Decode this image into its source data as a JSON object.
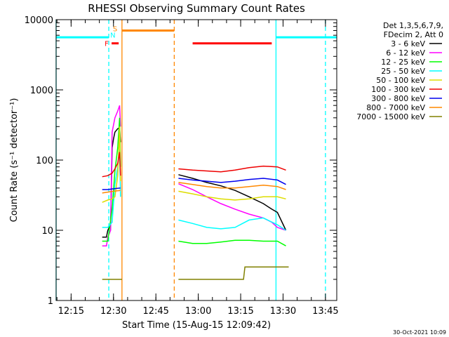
{
  "chart_data": {
    "type": "line",
    "title": "RHESSI Observing Summary Count Rates",
    "xlabel": "Start Time (15-Aug-15 12:09:42)",
    "ylabel": "Count Rate (s⁻¹ detector⁻¹)",
    "y_scale": "log",
    "xlim": [
      "12:09:42",
      "13:49:00"
    ],
    "ylim": [
      1,
      10000
    ],
    "x_ticks": [
      "12:15",
      "12:30",
      "12:45",
      "13:00",
      "13:15",
      "13:30",
      "13:45"
    ],
    "y_ticks": [
      "1",
      "10",
      "100",
      "1000",
      "10000"
    ],
    "legend_position": "right",
    "legend_header": [
      "Det 1,3,5,6,7,9,",
      "FDecim 2, Att 0"
    ],
    "timestamp": "30-Oct-2021 10:09",
    "series": [
      {
        "name": "3 - 6 keV",
        "color": "#000000",
        "x": [
          "12:26:00",
          "12:27:30",
          "12:28:00",
          "12:29:00",
          "12:29:30",
          "12:30:00",
          "12:30:30",
          "12:31:30",
          "12:32:10",
          "12:32:30"
        ],
        "values": [
          8,
          8,
          10,
          12,
          150,
          200,
          250,
          280,
          290,
          180
        ],
        "x2": [
          "12:53:00",
          "12:58:00",
          "13:03:00",
          "13:08:00",
          "13:13:00",
          "13:18:00",
          "13:23:00",
          "13:26:00",
          "13:28:00",
          "13:31:00"
        ],
        "values2": [
          62,
          55,
          48,
          43,
          37,
          30,
          24,
          20,
          18,
          10
        ]
      },
      {
        "name": "6 - 12 keV",
        "color": "#ff00ff",
        "x": [
          "12:26:00",
          "12:27:30",
          "12:28:00",
          "12:29:00",
          "12:29:30",
          "12:30:30",
          "12:31:30",
          "12:32:10",
          "12:32:30"
        ],
        "values": [
          6,
          6,
          8,
          10,
          250,
          400,
          500,
          600,
          300
        ],
        "x2": [
          "12:53:00",
          "12:58:00",
          "13:03:00",
          "13:08:00",
          "13:13:00",
          "13:18:00",
          "13:23:00",
          "13:26:00",
          "13:28:00",
          "13:31:00"
        ],
        "values2": [
          46,
          38,
          30,
          24,
          20,
          17,
          15,
          13,
          11,
          10
        ]
      },
      {
        "name": "12 - 25 keV",
        "color": "#00ff00",
        "x": [
          "12:26:00",
          "12:28:00",
          "12:29:30",
          "12:30:30",
          "12:31:30",
          "12:32:10",
          "12:32:30"
        ],
        "values": [
          7,
          7,
          20,
          70,
          150,
          400,
          80
        ],
        "x2": [
          "12:53:00",
          "12:58:00",
          "13:03:00",
          "13:08:00",
          "13:13:00",
          "13:18:00",
          "13:23:00",
          "13:28:00",
          "13:31:00"
        ],
        "values2": [
          7,
          6.5,
          6.5,
          6.8,
          7.2,
          7.2,
          7,
          7,
          6
        ]
      },
      {
        "name": "25 - 50 keV",
        "color": "#00ffff",
        "x": [
          "12:26:00",
          "12:28:00",
          "12:29:30",
          "12:30:30",
          "12:31:30",
          "12:32:10",
          "12:32:30"
        ],
        "values": [
          11,
          11,
          13,
          45,
          80,
          140,
          30
        ],
        "x2": [
          "12:53:00",
          "12:58:00",
          "13:03:00",
          "13:08:00",
          "13:13:00",
          "13:18:00",
          "13:23:00",
          "13:28:00",
          "13:31:00"
        ],
        "values2": [
          14,
          12.5,
          11,
          10.5,
          11,
          14,
          15,
          12,
          10
        ]
      },
      {
        "name": "50 - 100 keV",
        "color": "#dddd00",
        "x": [
          "12:26:00",
          "12:28:00",
          "12:29:30",
          "12:30:30",
          "12:31:30",
          "12:32:10",
          "12:32:30"
        ],
        "values": [
          25,
          27,
          28,
          30,
          60,
          300,
          50
        ],
        "x2": [
          "12:53:00",
          "12:58:00",
          "13:03:00",
          "13:08:00",
          "13:13:00",
          "13:18:00",
          "13:23:00",
          "13:28:00",
          "13:31:00"
        ],
        "values2": [
          36,
          33,
          30,
          28,
          27,
          28,
          30,
          30,
          28
        ]
      },
      {
        "name": "100 - 300 keV",
        "color": "#ee0000",
        "x": [
          "12:26:00",
          "12:28:00",
          "12:29:30",
          "12:30:30",
          "12:31:30",
          "12:32:10",
          "12:32:30"
        ],
        "values": [
          58,
          60,
          65,
          75,
          90,
          130,
          60
        ],
        "x2": [
          "12:53:00",
          "12:58:00",
          "13:03:00",
          "13:08:00",
          "13:13:00",
          "13:18:00",
          "13:23:00",
          "13:28:00",
          "13:31:00"
        ],
        "values2": [
          75,
          72,
          70,
          68,
          72,
          78,
          82,
          80,
          72
        ]
      },
      {
        "name": "300 - 800 keV",
        "color": "#0000ee",
        "x": [
          "12:26:00",
          "12:28:00",
          "12:30:00",
          "12:32:30"
        ],
        "values": [
          38,
          38,
          39,
          40
        ],
        "x2": [
          "12:53:00",
          "12:58:00",
          "13:03:00",
          "13:08:00",
          "13:13:00",
          "13:18:00",
          "13:23:00",
          "13:28:00",
          "13:31:00"
        ],
        "values2": [
          55,
          52,
          50,
          48,
          50,
          53,
          55,
          52,
          45
        ]
      },
      {
        "name": "800 - 7000 keV",
        "color": "#ff8800",
        "x": [
          "12:26:00",
          "12:28:00",
          "12:30:00",
          "12:32:30"
        ],
        "values": [
          34,
          35,
          36,
          37
        ],
        "x2": [
          "12:53:00",
          "12:58:00",
          "13:03:00",
          "13:08:00",
          "13:13:00",
          "13:18:00",
          "13:23:00",
          "13:28:00",
          "13:31:00"
        ],
        "values2": [
          48,
          45,
          42,
          40,
          40,
          42,
          44,
          42,
          38
        ]
      },
      {
        "name": "7000 - 15000 keV",
        "color": "#808000",
        "x": [
          "12:26:00",
          "12:33:00"
        ],
        "values": [
          2,
          2
        ],
        "x2": [
          "12:53:00",
          "13:16:00",
          "13:16:30",
          "13:32:00"
        ],
        "values2": [
          2,
          2,
          3,
          3
        ]
      }
    ],
    "flag_bars": [
      {
        "label": "",
        "color": "#00ffff",
        "start": "12:09:42",
        "end": "12:28:20",
        "level": 5600
      },
      {
        "label": "F",
        "color": "#ff0000",
        "start": "12:29:20",
        "end": "12:31:50",
        "level": 4600
      },
      {
        "label": "N",
        "color": "#00ffff",
        "start": "",
        "end": "",
        "level": 5600
      },
      {
        "label": "S",
        "color": "#ff8800",
        "start": "12:33:00",
        "end": "12:51:30",
        "level": 7000
      },
      {
        "label": "",
        "color": "#ff0000",
        "start": "12:58:00",
        "end": "13:26:00",
        "level": 4600
      },
      {
        "label": "",
        "color": "#00ffff",
        "start": "13:27:30",
        "end": "13:49:00",
        "level": 5600
      }
    ],
    "vertical_markers": [
      {
        "time": "12:09:42",
        "color": "#00ffff",
        "style": "solid"
      },
      {
        "time": "12:28:20",
        "color": "#00ffff",
        "style": "dashed"
      },
      {
        "time": "12:33:00",
        "color": "#ff8800",
        "style": "solid"
      },
      {
        "time": "12:51:30",
        "color": "#ff8800",
        "style": "dashed"
      },
      {
        "time": "13:27:30",
        "color": "#00ffff",
        "style": "solid"
      },
      {
        "time": "13:45:00",
        "color": "#00ffff",
        "style": "dashed"
      }
    ]
  }
}
